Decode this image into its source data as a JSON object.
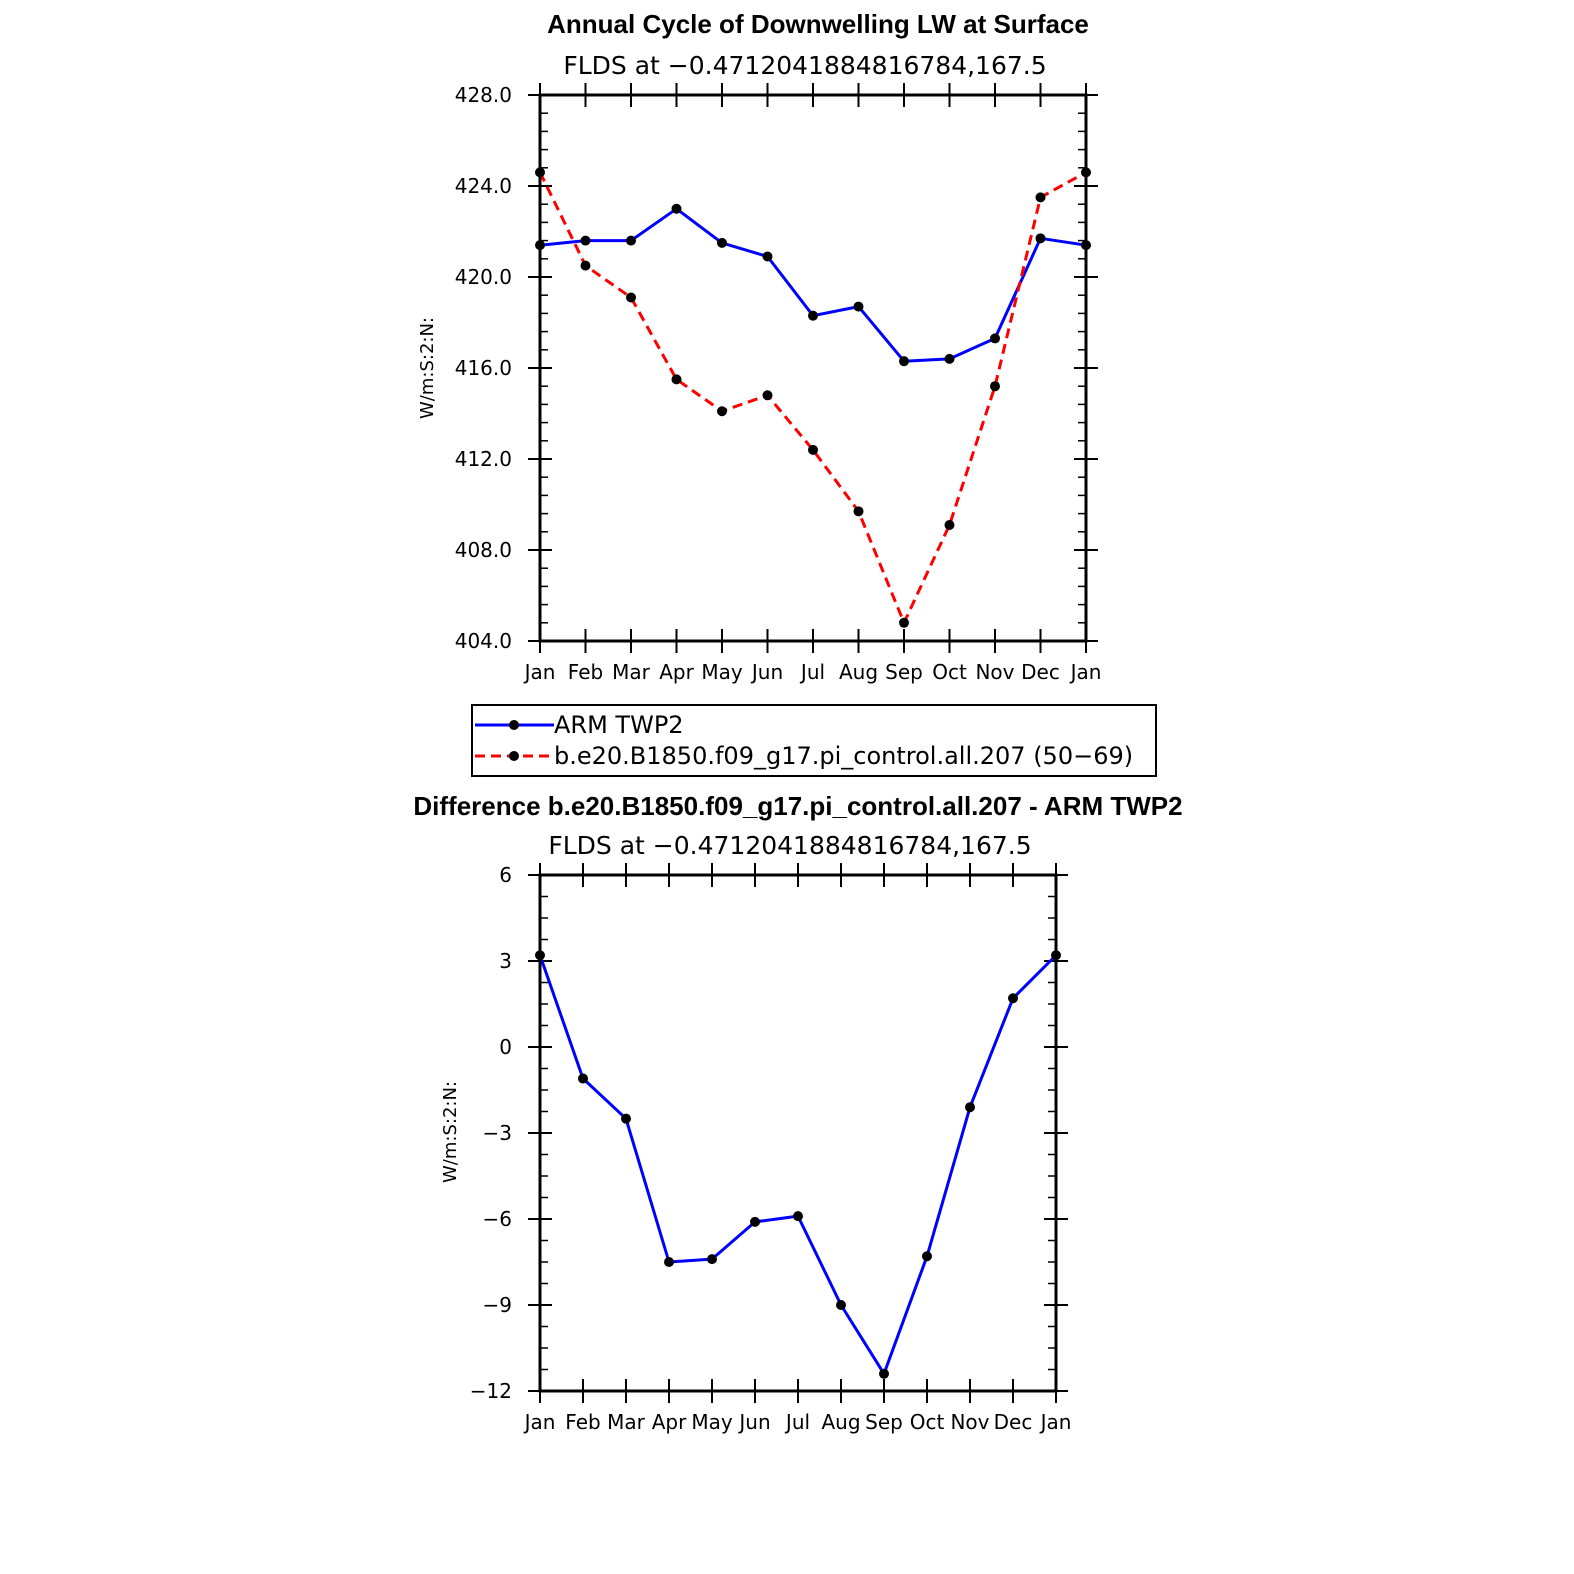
{
  "chart_data": [
    {
      "type": "line",
      "title": "Annual Cycle of Downwelling LW at Surface",
      "subtitle": "FLDS at −0.4712041884816784,167.5",
      "xlabel": "",
      "ylabel": "W/m:S:2:N:",
      "categories": [
        "Jan",
        "Feb",
        "Mar",
        "Apr",
        "May",
        "Jun",
        "Jul",
        "Aug",
        "Sep",
        "Oct",
        "Nov",
        "Dec",
        "Jan"
      ],
      "ylim": [
        404.0,
        428.0
      ],
      "yticks": [
        "404.0",
        "408.0",
        "412.0",
        "416.0",
        "420.0",
        "424.0",
        "428.0"
      ],
      "ytick_values": [
        404,
        408,
        412,
        416,
        420,
        424,
        428
      ],
      "series": [
        {
          "name": "ARM  TWP2",
          "color": "#0000ff",
          "dash": "solid",
          "values": [
            421.4,
            421.6,
            421.6,
            423.0,
            421.5,
            420.9,
            418.3,
            418.7,
            416.3,
            416.4,
            417.3,
            421.7,
            421.4
          ]
        },
        {
          "name": "b.e20.B1850.f09_g17.pi_control.all.207 (50−69)",
          "color": "#ff0000",
          "dash": "dashed",
          "values": [
            424.6,
            420.5,
            419.1,
            415.5,
            414.1,
            414.8,
            412.4,
            409.7,
            404.8,
            409.1,
            415.2,
            423.5,
            424.6
          ]
        }
      ],
      "legend": "below"
    },
    {
      "type": "line",
      "title": "Difference b.e20.B1850.f09_g17.pi_control.all.207 - ARM TWP2",
      "subtitle": "FLDS at −0.4712041884816784,167.5",
      "xlabel": "",
      "ylabel": "W/m:S:2:N:",
      "categories": [
        "Jan",
        "Feb",
        "Mar",
        "Apr",
        "May",
        "Jun",
        "Jul",
        "Aug",
        "Sep",
        "Oct",
        "Nov",
        "Dec",
        "Jan"
      ],
      "ylim": [
        -12,
        6
      ],
      "yticks": [
        "−12",
        "−9",
        "−6",
        "−3",
        "0",
        "3",
        "6"
      ],
      "ytick_values": [
        -12,
        -9,
        -6,
        -3,
        0,
        3,
        6
      ],
      "series": [
        {
          "color": "#0000ff",
          "dash": "solid",
          "values": [
            3.2,
            -1.1,
            -2.5,
            -7.5,
            -7.4,
            -6.1,
            -5.9,
            -9.0,
            -11.4,
            -7.3,
            -2.1,
            1.7,
            3.2
          ]
        }
      ]
    }
  ]
}
